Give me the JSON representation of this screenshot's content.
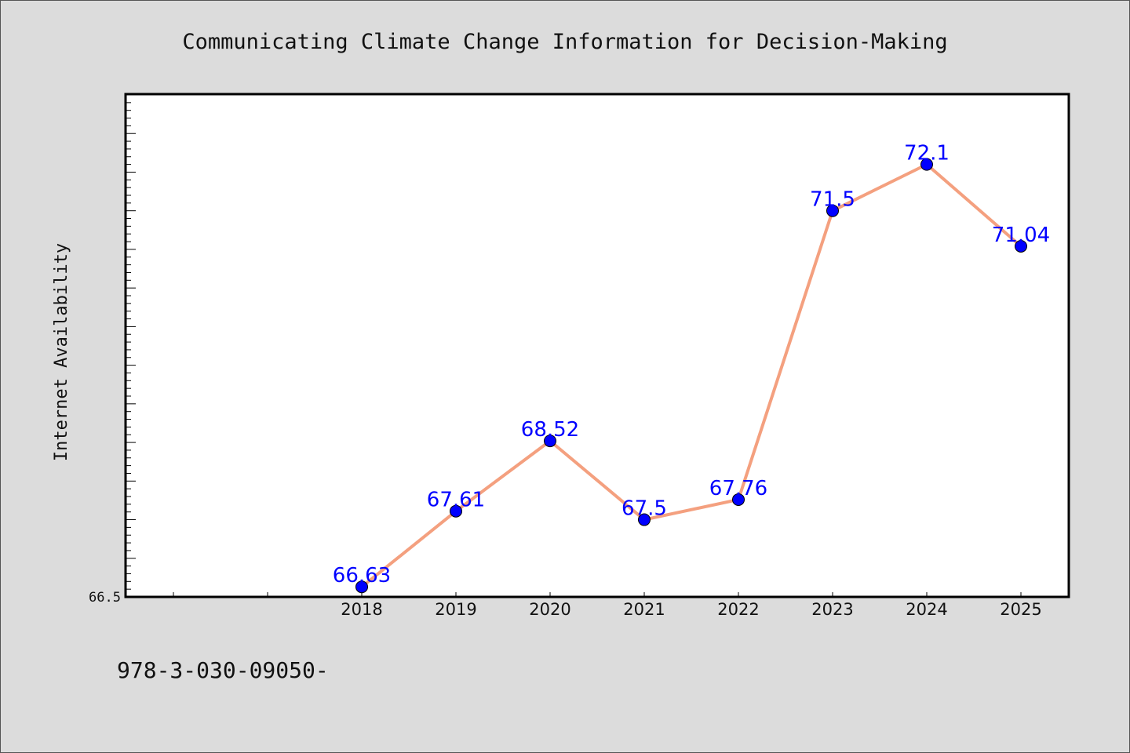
{
  "footer_text": "978-3-030-09050-",
  "colors": {
    "background": "#dcdcdc",
    "plot_background": "#ffffff",
    "line": "#f4a07f",
    "marker": "#0000ff",
    "data_label": "#0000ff"
  },
  "chart_data": {
    "type": "line",
    "title": "Communicating Climate Change Information for Decision-Making",
    "xlabel": "",
    "ylabel": "Internet Availability",
    "x": [
      "2018",
      "2019",
      "2020",
      "2021",
      "2022",
      "2023",
      "2024",
      "2025"
    ],
    "series": [
      {
        "values": [
          66.63,
          67.61,
          68.52,
          67.5,
          67.76,
          71.5,
          72.1,
          71.04
        ],
        "labels": [
          "66.63",
          "67.61",
          "68.52",
          "67.5",
          "67.76",
          "71.5",
          "72.1",
          "71.04"
        ]
      }
    ],
    "ylim": [
      66.5,
      73.0
    ],
    "y_tick_label": "66.5",
    "x_slots": 10,
    "grid": false,
    "legend": "none"
  }
}
